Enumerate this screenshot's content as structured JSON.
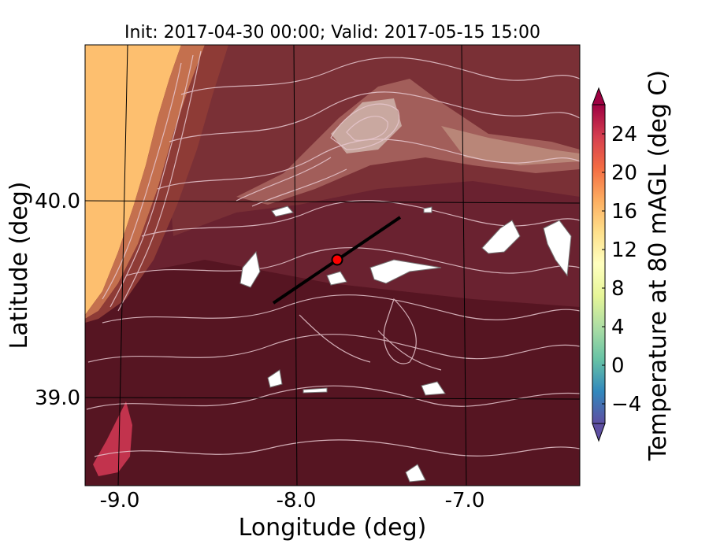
{
  "title": "Init: 2017-04-30 00:00; Valid: 2017-05-15 15:00",
  "x_axis": {
    "label": "Longitude (deg)",
    "ticks": [
      "-9.0",
      "-8.0",
      "-7.0"
    ]
  },
  "y_axis": {
    "label": "Latitude (deg)",
    "ticks": [
      "40.0",
      "39.0"
    ]
  },
  "colorbar": {
    "label": "Temperature at 80 mAGL (deg C)",
    "ticks": [
      "24",
      "20",
      "16",
      "12",
      "8",
      "4",
      "0",
      "−4"
    ],
    "range": [
      -6,
      27
    ],
    "colors": [
      "#5e4fa2",
      "#3288bd",
      "#66c2a5",
      "#abdda4",
      "#e6f598",
      "#ffffbf",
      "#fee08b",
      "#fdae61",
      "#f46d43",
      "#d53e4f",
      "#9e0142"
    ]
  },
  "map": {
    "cross_section_line": {
      "from_lon": -8.1,
      "from_lat": 39.5,
      "to_lon": -7.4,
      "to_lat": 39.92
    },
    "marker": {
      "lon": -7.74,
      "lat": 39.7,
      "color": "#ff0000"
    },
    "colors": {
      "background": "#5a1826",
      "warm_coast": "#fdbf6f",
      "ridge": "#b87a6e",
      "contour": "#e8c8d0"
    }
  }
}
